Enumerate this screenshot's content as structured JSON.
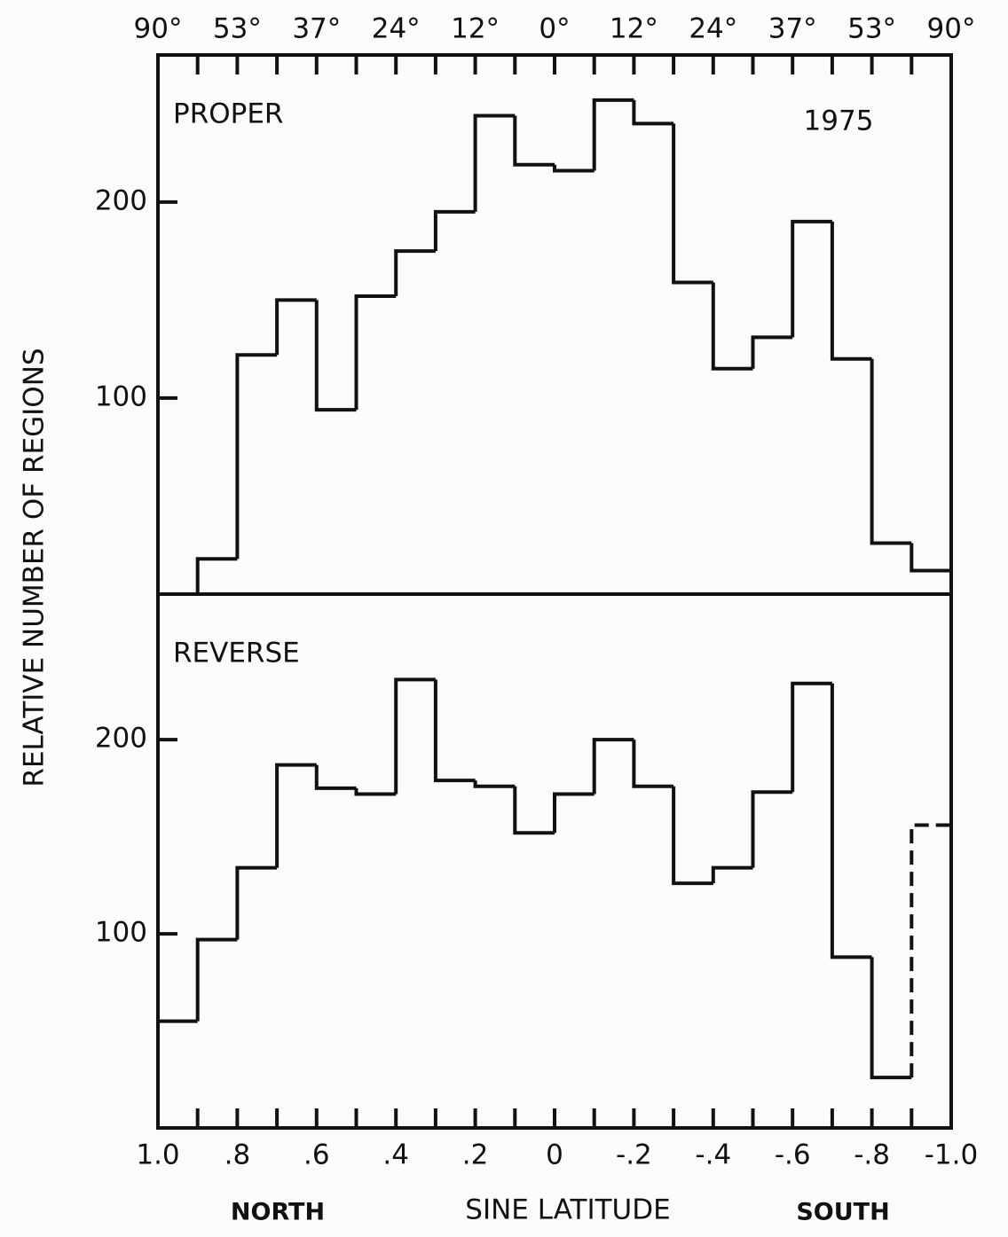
{
  "chart_data": {
    "type": "histogram",
    "y_label": "RELATIVE NUMBER OF REGIONS",
    "x_label": "SINE LATITUDE",
    "x_label_left": "NORTH",
    "x_label_right": "SOUTH",
    "annotation": "1975",
    "bins": [
      1.0,
      0.9,
      0.8,
      0.7,
      0.6,
      0.5,
      0.4,
      0.3,
      0.2,
      0.1,
      0,
      -0.1,
      -0.2,
      -0.3,
      -0.4,
      -0.5,
      -0.6,
      -0.7,
      -0.8,
      -0.9,
      -1.0
    ],
    "xlim": [
      1.0,
      -1.0
    ],
    "xticks": [
      {
        "value": 1.0,
        "label": "1.0"
      },
      {
        "value": 0.8,
        "label": ".8"
      },
      {
        "value": 0.6,
        "label": ".6"
      },
      {
        "value": 0.4,
        "label": ".4"
      },
      {
        "value": 0.2,
        "label": ".2"
      },
      0,
      {
        "value": -0.2,
        "label": "-.2"
      },
      {
        "value": -0.4,
        "label": "-.4"
      },
      {
        "value": -0.6,
        "label": "-.6"
      },
      {
        "value": -0.8,
        "label": "-.8"
      },
      {
        "value": -1.0,
        "label": "-1.0"
      }
    ],
    "x2ticks": [
      {
        "value": 1.0,
        "label": "90°"
      },
      {
        "value": 0.8,
        "label": "53°"
      },
      {
        "value": 0.6,
        "label": "37°"
      },
      {
        "value": 0.4,
        "label": "24°"
      },
      {
        "value": 0.2,
        "label": "12°"
      },
      {
        "value": 0,
        "label": "0°"
      },
      {
        "value": -0.2,
        "label": "12°"
      },
      {
        "value": -0.4,
        "label": "24°"
      },
      {
        "value": -0.6,
        "label": "37°"
      },
      {
        "value": -0.8,
        "label": "53°"
      },
      {
        "value": -1.0,
        "label": "90°"
      }
    ],
    "ylim": [
      0,
      275
    ],
    "yticks": [
      100,
      200
    ],
    "color": "#111111",
    "series": [
      {
        "name": "PROPER",
        "values": [
          0,
          18,
          122,
          150,
          94,
          152,
          175,
          195,
          244,
          219,
          216,
          252,
          240,
          159,
          115,
          131,
          190,
          120,
          26,
          12
        ]
      },
      {
        "name": "REVERSE",
        "values": [
          55,
          97,
          134,
          187,
          175,
          172,
          231,
          179,
          176,
          152,
          172,
          200,
          176,
          126,
          134,
          173,
          229,
          88,
          26,
          156
        ],
        "dashed_bins": [
          19
        ]
      }
    ]
  }
}
